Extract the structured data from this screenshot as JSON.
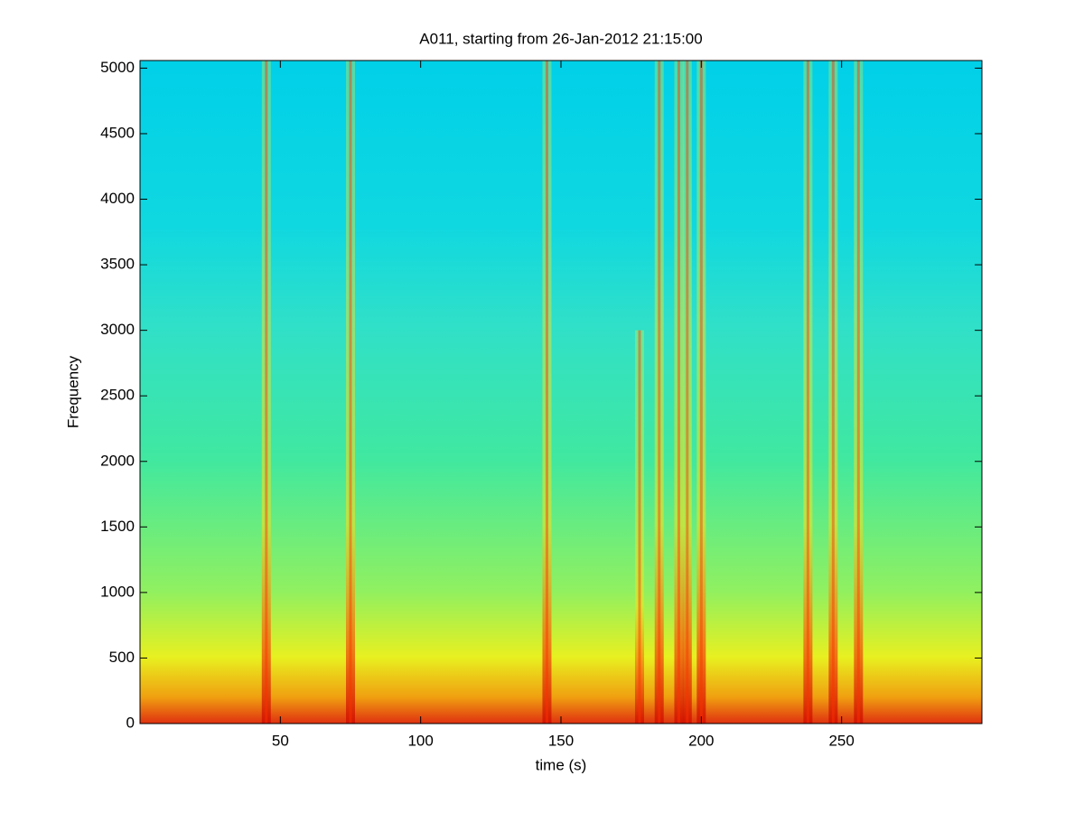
{
  "chart_data": {
    "type": "spectrogram",
    "title": "A011, starting from 26-Jan-2012 21:15:00",
    "xlabel": "time (s)",
    "ylabel": "Frequency",
    "xlim": [
      0,
      300
    ],
    "ylim": [
      0,
      5058
    ],
    "xticks": [
      50,
      100,
      150,
      200,
      250
    ],
    "yticks": [
      0,
      500,
      1000,
      1500,
      2000,
      2500,
      3000,
      3500,
      4000,
      4500,
      5000
    ],
    "x": [
      45,
      75,
      145,
      178,
      185,
      192,
      195,
      200,
      238,
      247,
      256
    ],
    "values": [
      5058,
      5058,
      5058,
      3000,
      5058,
      5058,
      5058,
      5058,
      5058,
      5058,
      5058
    ],
    "color": "#ff3000"
  }
}
